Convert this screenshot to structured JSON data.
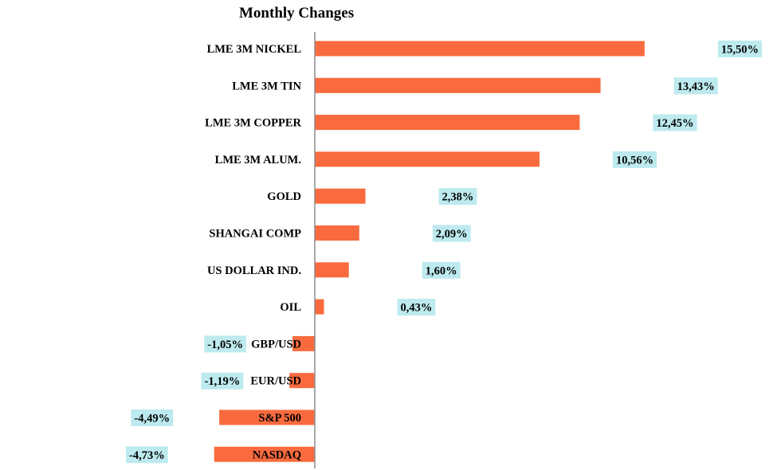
{
  "colors": {
    "bar": "#f96b3e",
    "label_bg": "#bdeaee",
    "axis": "#8c8c8c",
    "background": "#ffffff"
  },
  "chart_data": {
    "type": "bar",
    "orientation": "horizontal",
    "title": "Monthly Changes",
    "xlabel": "",
    "ylabel": "",
    "grid": false,
    "legend": "none",
    "xlim": [
      -5,
      16
    ],
    "categories": [
      "LME 3M NICKEL",
      "LME 3M TIN",
      "LME 3M COPPER",
      "LME 3M ALUM.",
      "GOLD",
      "SHANGAI COMP",
      "US DOLLAR IND.",
      "OIL",
      "GBP/USD",
      "EUR/USD",
      "S&P 500",
      "NASDAQ"
    ],
    "values": [
      15.5,
      13.43,
      12.45,
      10.56,
      2.38,
      2.09,
      1.6,
      0.43,
      -1.05,
      -1.19,
      -4.49,
      -4.73
    ],
    "value_labels": [
      "15,50%",
      "13,43%",
      "12,45%",
      "10,56%",
      "2,38%",
      "2,09%",
      "1,60%",
      "0,43%",
      "-1,05%",
      "-1,19%",
      "-4,49%",
      "-4,73%"
    ]
  }
}
